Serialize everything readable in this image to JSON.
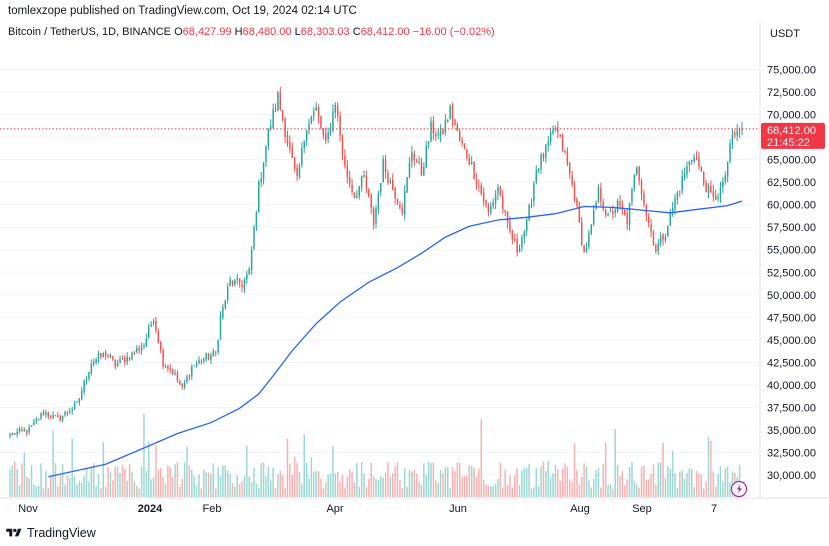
{
  "header": {
    "text": "tomlexzope published on TradingView.com, Oct 19, 2024 02:14 UTC"
  },
  "legend": {
    "symbol": "Bitcoin / TetherUS, 1D, BINANCE",
    "open_label": "O",
    "open": "68,427.99",
    "high_label": "H",
    "high": "68,480.00",
    "low_label": "L",
    "low": "68,303.03",
    "close_label": "C",
    "close": "68,412.00",
    "change": "−16.00 (−0.02%)"
  },
  "price_axis": {
    "currency": "USDT",
    "last_price": "68,412.00",
    "countdown": "21:45:22"
  },
  "footer": {
    "brand": "TradingView"
  },
  "colors": {
    "up": "#26a69a",
    "down": "#ef5350",
    "ma": "#2962ff",
    "last_price_tag": "#f23645"
  },
  "chart_data": {
    "type": "candlestick",
    "title": "Bitcoin / TetherUS, 1D, BINANCE",
    "ylim": [
      29000,
      76500
    ],
    "y_ticks": [
      "75,000.00",
      "72,500.00",
      "70,000.00",
      "67,500.00",
      "65,000.00",
      "62,500.00",
      "60,000.00",
      "57,500.00",
      "55,000.00",
      "52,500.00",
      "50,000.00",
      "47,500.00",
      "45,000.00",
      "42,500.00",
      "40,000.00",
      "37,500.00",
      "35,000.00",
      "32,500.00",
      "30,000.00"
    ],
    "x_ticks": [
      "Nov",
      "2024",
      "Feb",
      "Apr",
      "Jun",
      "Aug",
      "Sep",
      "7"
    ],
    "x_ticks_bold": [
      "2024"
    ],
    "indicator": "moving-average",
    "anchors": [
      {
        "x": 0,
        "price": 34500
      },
      {
        "x": 8,
        "price": 35000
      },
      {
        "x": 14,
        "price": 37000
      },
      {
        "x": 20,
        "price": 36200
      },
      {
        "x": 28,
        "price": 37800
      },
      {
        "x": 34,
        "price": 42500
      },
      {
        "x": 40,
        "price": 43500
      },
      {
        "x": 44,
        "price": 42200
      },
      {
        "x": 50,
        "price": 43200
      },
      {
        "x": 56,
        "price": 44500
      },
      {
        "x": 60,
        "price": 47500
      },
      {
        "x": 64,
        "price": 42500
      },
      {
        "x": 68,
        "price": 41500
      },
      {
        "x": 72,
        "price": 39500
      },
      {
        "x": 76,
        "price": 42000
      },
      {
        "x": 80,
        "price": 42800
      },
      {
        "x": 86,
        "price": 43500
      },
      {
        "x": 88,
        "price": 47500
      },
      {
        "x": 92,
        "price": 51500
      },
      {
        "x": 97,
        "price": 51200
      },
      {
        "x": 100,
        "price": 52500
      },
      {
        "x": 104,
        "price": 62000
      },
      {
        "x": 108,
        "price": 68000
      },
      {
        "x": 112,
        "price": 72000
      },
      {
        "x": 116,
        "price": 67000
      },
      {
        "x": 120,
        "price": 62500
      },
      {
        "x": 124,
        "price": 69000
      },
      {
        "x": 128,
        "price": 70500
      },
      {
        "x": 132,
        "price": 66500
      },
      {
        "x": 136,
        "price": 71500
      },
      {
        "x": 140,
        "price": 64000
      },
      {
        "x": 144,
        "price": 61000
      },
      {
        "x": 148,
        "price": 63000
      },
      {
        "x": 152,
        "price": 58000
      },
      {
        "x": 156,
        "price": 64500
      },
      {
        "x": 160,
        "price": 61800
      },
      {
        "x": 164,
        "price": 59500
      },
      {
        "x": 168,
        "price": 66000
      },
      {
        "x": 172,
        "price": 63500
      },
      {
        "x": 176,
        "price": 68500
      },
      {
        "x": 180,
        "price": 67500
      },
      {
        "x": 184,
        "price": 70500
      },
      {
        "x": 188,
        "price": 67000
      },
      {
        "x": 192,
        "price": 65000
      },
      {
        "x": 196,
        "price": 62000
      },
      {
        "x": 200,
        "price": 59000
      },
      {
        "x": 204,
        "price": 62000
      },
      {
        "x": 208,
        "price": 57500
      },
      {
        "x": 212,
        "price": 55000
      },
      {
        "x": 216,
        "price": 57800
      },
      {
        "x": 220,
        "price": 64000
      },
      {
        "x": 224,
        "price": 66000
      },
      {
        "x": 228,
        "price": 68500
      },
      {
        "x": 232,
        "price": 65500
      },
      {
        "x": 236,
        "price": 61000
      },
      {
        "x": 240,
        "price": 54500
      },
      {
        "x": 243,
        "price": 57500
      },
      {
        "x": 246,
        "price": 61500
      },
      {
        "x": 250,
        "price": 58500
      },
      {
        "x": 254,
        "price": 60000
      },
      {
        "x": 258,
        "price": 58200
      },
      {
        "x": 262,
        "price": 64500
      },
      {
        "x": 266,
        "price": 59000
      },
      {
        "x": 270,
        "price": 55000
      },
      {
        "x": 274,
        "price": 57000
      },
      {
        "x": 278,
        "price": 60500
      },
      {
        "x": 282,
        "price": 63500
      },
      {
        "x": 286,
        "price": 65800
      },
      {
        "x": 290,
        "price": 62500
      },
      {
        "x": 294,
        "price": 60500
      },
      {
        "x": 298,
        "price": 62000
      },
      {
        "x": 302,
        "price": 67500
      },
      {
        "x": 306,
        "price": 68412
      }
    ],
    "ma_points": [
      {
        "x": 16,
        "price": 29800
      },
      {
        "x": 40,
        "price": 31200
      },
      {
        "x": 56,
        "price": 33000
      },
      {
        "x": 70,
        "price": 34600
      },
      {
        "x": 84,
        "price": 35800
      },
      {
        "x": 96,
        "price": 37400
      },
      {
        "x": 104,
        "price": 39000
      },
      {
        "x": 110,
        "price": 41000
      },
      {
        "x": 118,
        "price": 43800
      },
      {
        "x": 128,
        "price": 46800
      },
      {
        "x": 138,
        "price": 49200
      },
      {
        "x": 150,
        "price": 51400
      },
      {
        "x": 162,
        "price": 53000
      },
      {
        "x": 172,
        "price": 54600
      },
      {
        "x": 182,
        "price": 56400
      },
      {
        "x": 192,
        "price": 57600
      },
      {
        "x": 204,
        "price": 58300
      },
      {
        "x": 216,
        "price": 58600
      },
      {
        "x": 228,
        "price": 59000
      },
      {
        "x": 240,
        "price": 59800
      },
      {
        "x": 252,
        "price": 59700
      },
      {
        "x": 264,
        "price": 59400
      },
      {
        "x": 276,
        "price": 59100
      },
      {
        "x": 288,
        "price": 59500
      },
      {
        "x": 300,
        "price": 59900
      },
      {
        "x": 306,
        "price": 60400
      }
    ]
  }
}
